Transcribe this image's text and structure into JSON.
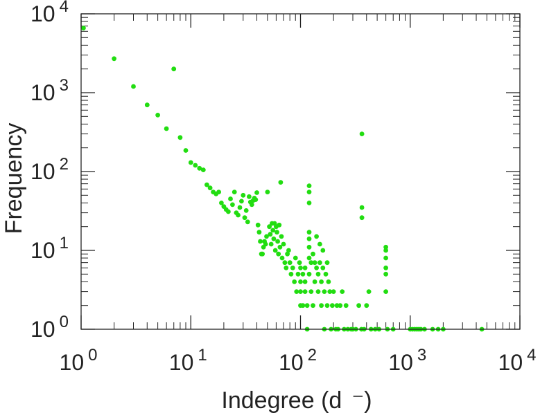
{
  "chart_data": {
    "type": "scatter",
    "xlabel": "Indegree (d",
    "xlabel_suffix": "⁻)",
    "ylabel": "Frequency",
    "xscale": "log",
    "yscale": "log",
    "xlim": [
      1,
      10000
    ],
    "ylim": [
      1,
      10000
    ],
    "grid": false,
    "marker_color": "#22dd11",
    "x_ticks": [
      {
        "base": "10",
        "exp": "0",
        "value": 1
      },
      {
        "base": "10",
        "exp": "1",
        "value": 10
      },
      {
        "base": "10",
        "exp": "2",
        "value": 100
      },
      {
        "base": "10",
        "exp": "3",
        "value": 1000
      },
      {
        "base": "10",
        "exp": "4",
        "value": 10000
      }
    ],
    "y_ticks": [
      {
        "base": "10",
        "exp": "0",
        "value": 1
      },
      {
        "base": "10",
        "exp": "1",
        "value": 10
      },
      {
        "base": "10",
        "exp": "2",
        "value": 100
      },
      {
        "base": "10",
        "exp": "3",
        "value": 1000
      },
      {
        "base": "10",
        "exp": "4",
        "value": 10000
      }
    ],
    "points": [
      [
        1.05,
        6600
      ],
      [
        2,
        2700
      ],
      [
        3,
        1200
      ],
      [
        4,
        700
      ],
      [
        5,
        520
      ],
      [
        6,
        350
      ],
      [
        7,
        2000
      ],
      [
        8,
        270
      ],
      [
        9,
        185
      ],
      [
        10,
        130
      ],
      [
        11,
        120
      ],
      [
        12,
        110
      ],
      [
        13,
        105
      ],
      [
        14,
        68
      ],
      [
        15,
        62
      ],
      [
        16,
        55
      ],
      [
        17,
        52
      ],
      [
        18,
        55
      ],
      [
        19,
        40
      ],
      [
        20,
        36
      ],
      [
        21,
        33
      ],
      [
        22,
        31
      ],
      [
        23,
        45
      ],
      [
        24,
        38
      ],
      [
        25,
        55
      ],
      [
        26,
        30
      ],
      [
        27,
        28
      ],
      [
        28,
        35
      ],
      [
        29,
        42
      ],
      [
        30,
        50
      ],
      [
        31,
        26
      ],
      [
        32,
        32
      ],
      [
        33,
        23
      ],
      [
        34,
        48
      ],
      [
        35,
        41
      ],
      [
        36,
        38
      ],
      [
        37,
        43
      ],
      [
        38,
        46
      ],
      [
        39,
        44
      ],
      [
        40,
        54
      ],
      [
        41,
        21
      ],
      [
        42,
        17
      ],
      [
        43,
        13
      ],
      [
        44,
        9
      ],
      [
        45,
        9
      ],
      [
        46,
        11
      ],
      [
        47,
        13
      ],
      [
        48,
        12
      ],
      [
        49,
        15
      ],
      [
        50,
        55
      ],
      [
        52,
        20
      ],
      [
        53,
        16
      ],
      [
        54,
        12
      ],
      [
        55,
        22
      ],
      [
        56,
        18
      ],
      [
        57,
        14
      ],
      [
        58,
        22
      ],
      [
        59,
        10
      ],
      [
        60,
        20
      ],
      [
        61,
        17
      ],
      [
        62,
        13
      ],
      [
        63,
        9
      ],
      [
        64,
        21
      ],
      [
        65,
        11
      ],
      [
        66,
        73
      ],
      [
        67,
        15
      ],
      [
        68,
        8
      ],
      [
        70,
        12
      ],
      [
        72,
        7
      ],
      [
        74,
        6
      ],
      [
        76,
        9
      ],
      [
        78,
        10
      ],
      [
        80,
        7
      ],
      [
        82,
        5
      ],
      [
        85,
        6
      ],
      [
        88,
        4
      ],
      [
        90,
        8
      ],
      [
        92,
        3
      ],
      [
        95,
        5
      ],
      [
        98,
        7
      ],
      [
        100,
        6
      ],
      [
        100,
        4
      ],
      [
        100,
        2
      ],
      [
        100,
        3
      ],
      [
        105,
        5
      ],
      [
        105,
        2
      ],
      [
        110,
        3
      ],
      [
        110,
        4
      ],
      [
        110,
        6
      ],
      [
        115,
        2
      ],
      [
        115,
        1
      ],
      [
        120,
        66
      ],
      [
        120,
        55
      ],
      [
        120,
        40
      ],
      [
        120,
        17
      ],
      [
        120,
        14
      ],
      [
        120,
        11
      ],
      [
        120,
        8
      ],
      [
        120,
        5
      ],
      [
        125,
        3
      ],
      [
        125,
        7
      ],
      [
        130,
        2
      ],
      [
        130,
        9
      ],
      [
        135,
        7
      ],
      [
        135,
        4
      ],
      [
        140,
        15
      ],
      [
        140,
        6
      ],
      [
        145,
        3
      ],
      [
        145,
        5
      ],
      [
        150,
        7
      ],
      [
        150,
        12
      ],
      [
        155,
        2
      ],
      [
        155,
        4
      ],
      [
        160,
        6
      ],
      [
        160,
        10
      ],
      [
        165,
        3
      ],
      [
        165,
        1
      ],
      [
        170,
        5
      ],
      [
        175,
        7
      ],
      [
        175,
        2
      ],
      [
        180,
        4
      ],
      [
        185,
        3
      ],
      [
        190,
        1
      ],
      [
        195,
        2
      ],
      [
        200,
        3
      ],
      [
        210,
        1
      ],
      [
        215,
        2
      ],
      [
        220,
        1
      ],
      [
        230,
        2
      ],
      [
        240,
        3
      ],
      [
        250,
        1
      ],
      [
        260,
        2
      ],
      [
        270,
        1
      ],
      [
        290,
        1
      ],
      [
        300,
        1
      ],
      [
        320,
        1
      ],
      [
        340,
        2
      ],
      [
        360,
        1
      ],
      [
        363,
        300
      ],
      [
        363,
        35
      ],
      [
        363,
        26
      ],
      [
        380,
        1
      ],
      [
        400,
        2
      ],
      [
        420,
        3
      ],
      [
        440,
        1
      ],
      [
        480,
        1
      ],
      [
        520,
        1
      ],
      [
        600,
        11
      ],
      [
        600,
        10
      ],
      [
        600,
        8
      ],
      [
        600,
        6
      ],
      [
        600,
        5
      ],
      [
        600,
        3
      ],
      [
        620,
        1
      ],
      [
        700,
        1
      ],
      [
        1000,
        1
      ],
      [
        1050,
        1
      ],
      [
        1100,
        1
      ],
      [
        1150,
        1
      ],
      [
        1200,
        1
      ],
      [
        1250,
        1
      ],
      [
        1350,
        1
      ],
      [
        1600,
        1
      ],
      [
        1800,
        1
      ],
      [
        2000,
        1
      ],
      [
        4500,
        1
      ]
    ]
  }
}
